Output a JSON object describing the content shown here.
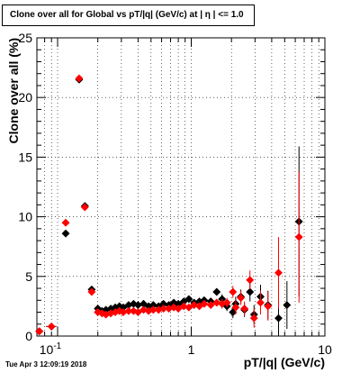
{
  "title": "Clone  over all for Global vs pT/|q| (GeV/c) at |  η | <= 1.0",
  "timestamp": "Tue Apr  3 12:09:19 2018",
  "chart_data": {
    "type": "scatter",
    "title": "Clone  over all for Global vs pT/|q| (GeV/c) at |  η | <= 1.0",
    "xlabel": "pT/|q| (GeV/c)",
    "ylabel": "Clone  over all (%)",
    "x_scale": "log",
    "xlim": [
      0.07,
      10
    ],
    "ylim": [
      0,
      25
    ],
    "grid": true,
    "x_tick_labels": [
      "10^-1",
      "1",
      "10"
    ],
    "y_tick_labels": [
      "0",
      "5",
      "10",
      "15",
      "20",
      "25"
    ],
    "series": [
      {
        "color": "#000000",
        "marker": "diamond",
        "points": [
          {
            "x": 0.073,
            "y": 0.4,
            "xerr": 0.004,
            "yerr": 0.2
          },
          {
            "x": 0.09,
            "y": 0.8,
            "xerr": 0.008,
            "yerr": 0.1
          },
          {
            "x": 0.115,
            "y": 8.6,
            "xerr": 0.005,
            "yerr": 0.25
          },
          {
            "x": 0.145,
            "y": 21.5,
            "xerr": 0.005,
            "yerr": 0.3
          },
          {
            "x": 0.16,
            "y": 10.9,
            "xerr": 0.005,
            "yerr": 0.2
          },
          {
            "x": 0.18,
            "y": 3.9,
            "xerr": 0.005,
            "yerr": 0.2
          },
          {
            "x": 0.2,
            "y": 2.3
          },
          {
            "x": 0.215,
            "y": 2.1
          },
          {
            "x": 0.23,
            "y": 2.2
          },
          {
            "x": 0.25,
            "y": 2.3
          },
          {
            "x": 0.27,
            "y": 2.4
          },
          {
            "x": 0.29,
            "y": 2.5
          },
          {
            "x": 0.31,
            "y": 2.4
          },
          {
            "x": 0.34,
            "y": 2.6
          },
          {
            "x": 0.37,
            "y": 2.7
          },
          {
            "x": 0.4,
            "y": 2.6
          },
          {
            "x": 0.44,
            "y": 2.7
          },
          {
            "x": 0.48,
            "y": 2.5
          },
          {
            "x": 0.52,
            "y": 2.6
          },
          {
            "x": 0.57,
            "y": 2.5
          },
          {
            "x": 0.62,
            "y": 2.7
          },
          {
            "x": 0.68,
            "y": 2.6
          },
          {
            "x": 0.74,
            "y": 2.8
          },
          {
            "x": 0.8,
            "y": 2.7
          },
          {
            "x": 0.88,
            "y": 2.9
          },
          {
            "x": 0.96,
            "y": 3.1
          },
          {
            "x": 1.05,
            "y": 2.8
          },
          {
            "x": 1.15,
            "y": 2.9
          },
          {
            "x": 1.25,
            "y": 3.0
          },
          {
            "x": 1.4,
            "y": 2.9
          },
          {
            "x": 1.55,
            "y": 3.7,
            "yerr": 0.3
          },
          {
            "x": 1.7,
            "y": 3.1,
            "yerr": 0.4
          },
          {
            "x": 1.85,
            "y": 2.5,
            "yerr": 0.4
          },
          {
            "x": 2.05,
            "y": 2.0,
            "yerr": 0.5
          },
          {
            "x": 2.15,
            "y": 2.7,
            "yerr": 0.6
          },
          {
            "x": 2.35,
            "y": 3.3,
            "yerr": 0.6
          },
          {
            "x": 2.5,
            "y": 2.2,
            "yerr": 0.6
          },
          {
            "x": 2.75,
            "y": 3.7,
            "yerr": 0.8
          },
          {
            "x": 2.95,
            "y": 1.8,
            "yerr": 0.8
          },
          {
            "x": 3.3,
            "y": 3.3,
            "yerr": 1.0
          },
          {
            "x": 3.75,
            "y": 2.6,
            "yerr": 1.2
          },
          {
            "x": 4.5,
            "y": 1.5,
            "yerr": 1.5
          },
          {
            "x": 5.2,
            "y": 2.6,
            "yerr": 2.0
          },
          {
            "x": 6.4,
            "y": 9.6,
            "yerr": 6.3
          }
        ]
      },
      {
        "color": "#ff0000",
        "marker": "diamond",
        "points": [
          {
            "x": 0.073,
            "y": 0.4,
            "xerr": 0.004,
            "yerr": 0.2
          },
          {
            "x": 0.09,
            "y": 0.8,
            "xerr": 0.008,
            "yerr": 0.1
          },
          {
            "x": 0.115,
            "y": 9.5,
            "xerr": 0.005,
            "yerr": 0.25
          },
          {
            "x": 0.145,
            "y": 21.6,
            "xerr": 0.005,
            "yerr": 0.3
          },
          {
            "x": 0.16,
            "y": 10.8,
            "xerr": 0.005,
            "yerr": 0.2
          },
          {
            "x": 0.18,
            "y": 3.7,
            "xerr": 0.005,
            "yerr": 0.2
          },
          {
            "x": 0.2,
            "y": 2.0
          },
          {
            "x": 0.215,
            "y": 1.9
          },
          {
            "x": 0.23,
            "y": 1.8
          },
          {
            "x": 0.25,
            "y": 1.9
          },
          {
            "x": 0.27,
            "y": 2.0
          },
          {
            "x": 0.29,
            "y": 2.1
          },
          {
            "x": 0.31,
            "y": 2.0
          },
          {
            "x": 0.34,
            "y": 2.1
          },
          {
            "x": 0.37,
            "y": 2.1
          },
          {
            "x": 0.4,
            "y": 2.0
          },
          {
            "x": 0.44,
            "y": 2.2
          },
          {
            "x": 0.48,
            "y": 2.1
          },
          {
            "x": 0.52,
            "y": 2.2
          },
          {
            "x": 0.57,
            "y": 2.2
          },
          {
            "x": 0.62,
            "y": 2.3
          },
          {
            "x": 0.68,
            "y": 2.3
          },
          {
            "x": 0.74,
            "y": 2.4
          },
          {
            "x": 0.8,
            "y": 2.3
          },
          {
            "x": 0.88,
            "y": 2.5
          },
          {
            "x": 0.96,
            "y": 2.4
          },
          {
            "x": 1.05,
            "y": 2.6
          },
          {
            "x": 1.15,
            "y": 2.5
          },
          {
            "x": 1.25,
            "y": 2.7
          },
          {
            "x": 1.4,
            "y": 2.6
          },
          {
            "x": 1.55,
            "y": 2.8,
            "yerr": 0.3
          },
          {
            "x": 1.7,
            "y": 2.7,
            "yerr": 0.4
          },
          {
            "x": 1.85,
            "y": 2.8,
            "yerr": 0.4
          },
          {
            "x": 2.05,
            "y": 3.7,
            "yerr": 0.5
          },
          {
            "x": 2.15,
            "y": 2.4,
            "yerr": 0.6
          },
          {
            "x": 2.35,
            "y": 3.2,
            "yerr": 0.6
          },
          {
            "x": 2.5,
            "y": 2.3,
            "yerr": 0.6
          },
          {
            "x": 2.75,
            "y": 4.7,
            "yerr": 0.8
          },
          {
            "x": 2.95,
            "y": 1.5,
            "yerr": 0.8
          },
          {
            "x": 3.3,
            "y": 2.8,
            "yerr": 1.0
          },
          {
            "x": 3.75,
            "y": 2.5,
            "yerr": 1.2
          },
          {
            "x": 4.5,
            "y": 5.3,
            "yerr": 3.0
          },
          {
            "x": 6.4,
            "y": 8.3,
            "yerr": 5.5
          }
        ]
      }
    ]
  }
}
